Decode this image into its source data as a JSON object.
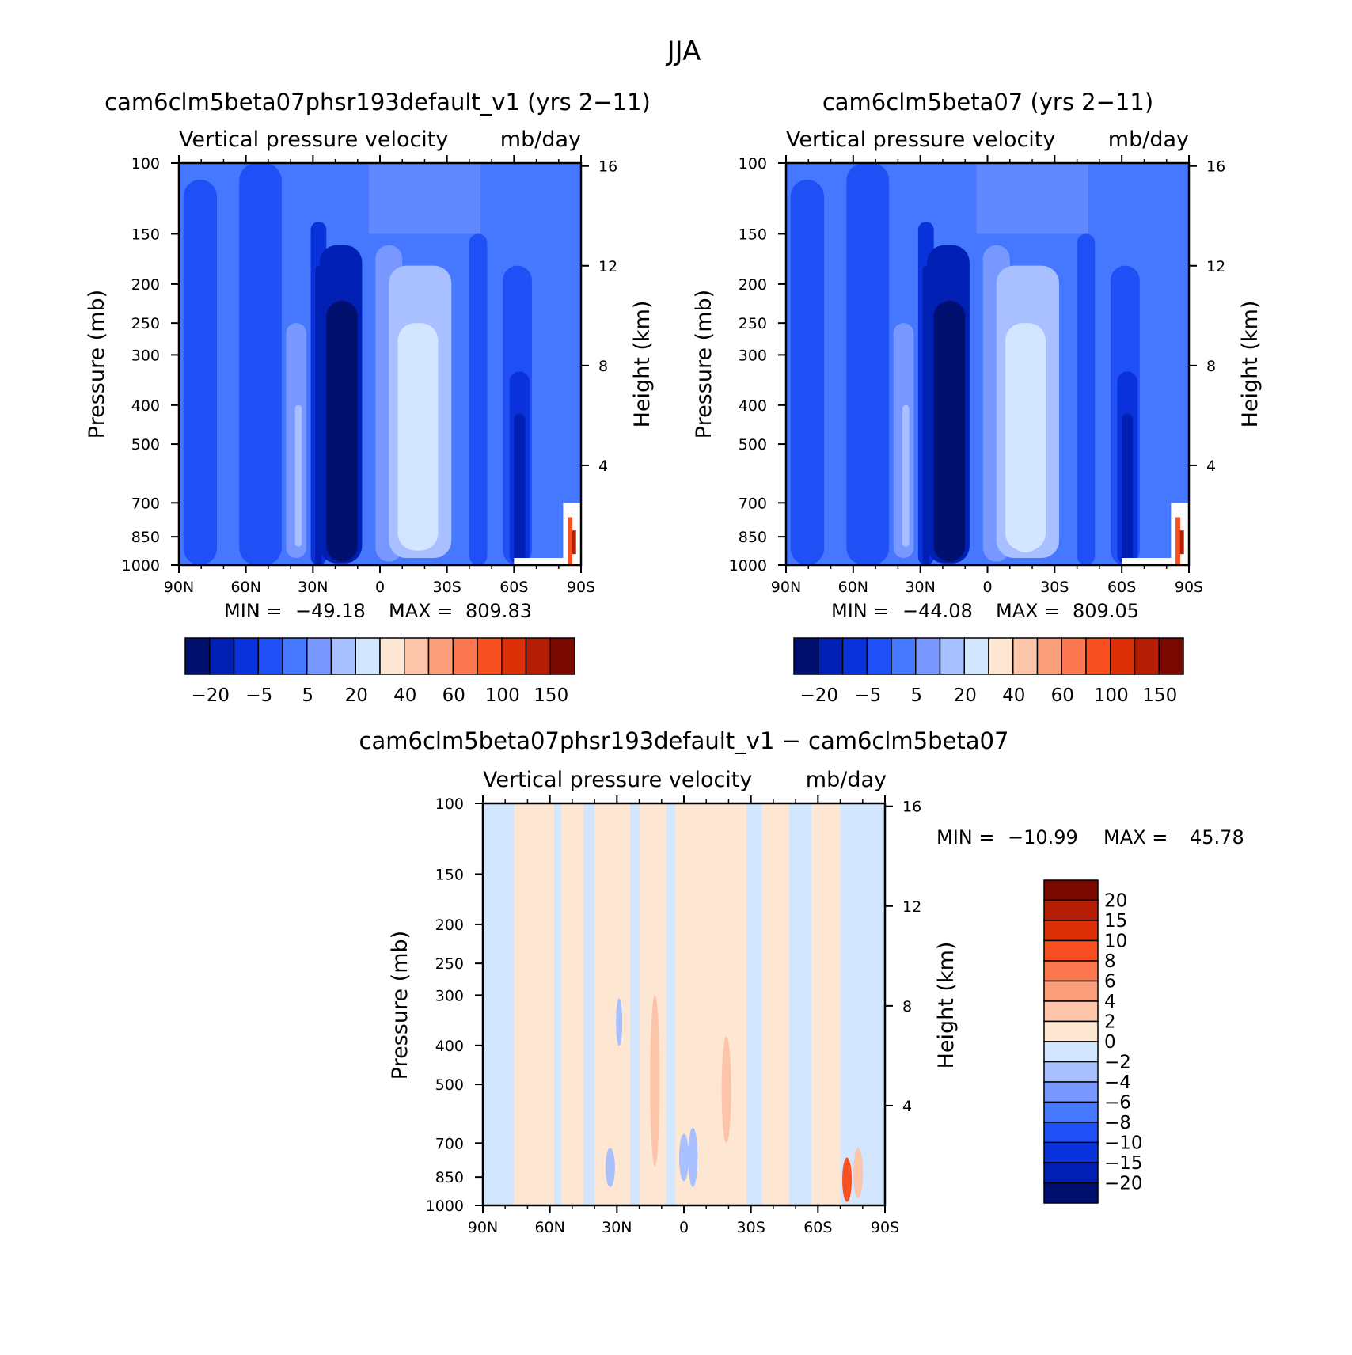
{
  "figure": {
    "title": "JJA"
  },
  "colors": {
    "main_palette": [
      "#00106e",
      "#0020b4",
      "#0a32dc",
      "#1e50f5",
      "#4678ff",
      "#7898ff",
      "#a8c0ff",
      "#d2e6ff",
      "#fde6d2",
      "#fcc4a8",
      "#fca07c",
      "#fc7850",
      "#f85020",
      "#dc3008",
      "#b41e04",
      "#7a0a00"
    ],
    "diff_palette": [
      "#00106e",
      "#0020b4",
      "#0a32dc",
      "#1e50f5",
      "#4678ff",
      "#7898ff",
      "#a8c0ff",
      "#d2e6ff",
      "#fde6d2",
      "#fcc4a8",
      "#fca07c",
      "#fc7850",
      "#f85020",
      "#dc3008",
      "#b41e04",
      "#7a0a00"
    ]
  },
  "chart_data": [
    {
      "type": "heatmap",
      "title": "cam6clm5beta07phsr193default_v1 (yrs 2−11)",
      "subtitle_left": "Vertical pressure velocity",
      "subtitle_right": "mb/day",
      "ylabel": "Pressure (mb)",
      "ylabel2": "Height (km)",
      "x_ticks": [
        "90N",
        "60N",
        "30N",
        "0",
        "30S",
        "60S",
        "90S"
      ],
      "y_ticks": [
        "100",
        "150",
        "200",
        "250",
        "300",
        "400",
        "500",
        "700",
        "850",
        "1000"
      ],
      "y2_ticks": [
        "16",
        "12",
        "8",
        "4"
      ],
      "stats": {
        "min_label": "MIN =",
        "min": "−49.18",
        "max_label": "MAX =",
        "max": "809.83"
      },
      "colorbar_labels": [
        "−20",
        "−5",
        "5",
        "20",
        "40",
        "60",
        "100",
        "150"
      ]
    },
    {
      "type": "heatmap",
      "title": "cam6clm5beta07 (yrs 2−11)",
      "subtitle_left": "Vertical pressure velocity",
      "subtitle_right": "mb/day",
      "ylabel": "Pressure (mb)",
      "ylabel2": "Height (km)",
      "x_ticks": [
        "90N",
        "60N",
        "30N",
        "0",
        "30S",
        "60S",
        "90S"
      ],
      "y_ticks": [
        "100",
        "150",
        "200",
        "250",
        "300",
        "400",
        "500",
        "700",
        "850",
        "1000"
      ],
      "y2_ticks": [
        "16",
        "12",
        "8",
        "4"
      ],
      "stats": {
        "min_label": "MIN =",
        "min": "−44.08",
        "max_label": "MAX =",
        "max": "809.05"
      },
      "colorbar_labels": [
        "−20",
        "−5",
        "5",
        "20",
        "40",
        "60",
        "100",
        "150"
      ]
    },
    {
      "type": "heatmap",
      "title": "cam6clm5beta07phsr193default_v1 − cam6clm5beta07",
      "subtitle_left": "Vertical pressure velocity",
      "subtitle_right": "mb/day",
      "ylabel": "Pressure (mb)",
      "ylabel2": "Height (km)",
      "x_ticks": [
        "90N",
        "60N",
        "30N",
        "0",
        "30S",
        "60S",
        "90S"
      ],
      "y_ticks": [
        "100",
        "150",
        "200",
        "250",
        "300",
        "400",
        "500",
        "700",
        "850",
        "1000"
      ],
      "y2_ticks": [
        "16",
        "12",
        "8",
        "4"
      ],
      "stats": {
        "min_label": "MIN =",
        "min": "−10.99",
        "max_label": "MAX =",
        "max": "45.78"
      },
      "colorbar_labels": [
        "20",
        "15",
        "10",
        "8",
        "6",
        "4",
        "2",
        "0",
        "−2",
        "−4",
        "−6",
        "−8",
        "−10",
        "−15",
        "−20"
      ]
    }
  ]
}
